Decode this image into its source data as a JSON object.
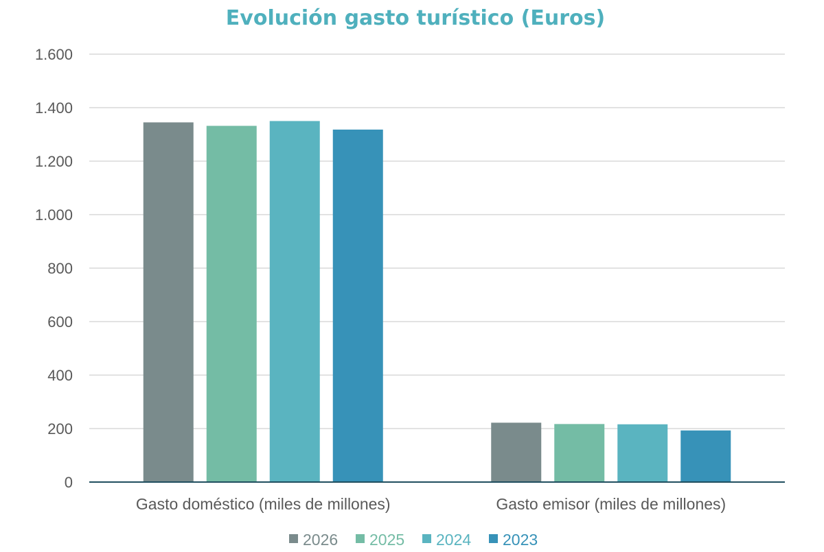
{
  "chart_data": {
    "type": "bar",
    "title": "Evolución gasto turístico (Euros)",
    "categories": [
      "Gasto doméstico (miles de millones)",
      "Gasto emisor (miles de millones)"
    ],
    "series": [
      {
        "name": "2026",
        "values": [
          1345,
          222
        ],
        "color": "#7a8b8c"
      },
      {
        "name": "2025",
        "values": [
          1332,
          217
        ],
        "color": "#74bca5"
      },
      {
        "name": "2024",
        "values": [
          1350,
          216
        ],
        "color": "#5ab4c0"
      },
      {
        "name": "2023",
        "values": [
          1318,
          193
        ],
        "color": "#3792b8"
      }
    ],
    "ylim": [
      0,
      1600
    ],
    "yticks": [
      0,
      200,
      400,
      600,
      800,
      1000,
      1200,
      1400,
      1600
    ],
    "ytick_labels": [
      "0",
      "200",
      "400",
      "600",
      "800",
      "1.000",
      "1.200",
      "1.400",
      "1.600"
    ],
    "xlabel": "",
    "ylabel": "",
    "grid": true,
    "legend_position": "bottom"
  }
}
